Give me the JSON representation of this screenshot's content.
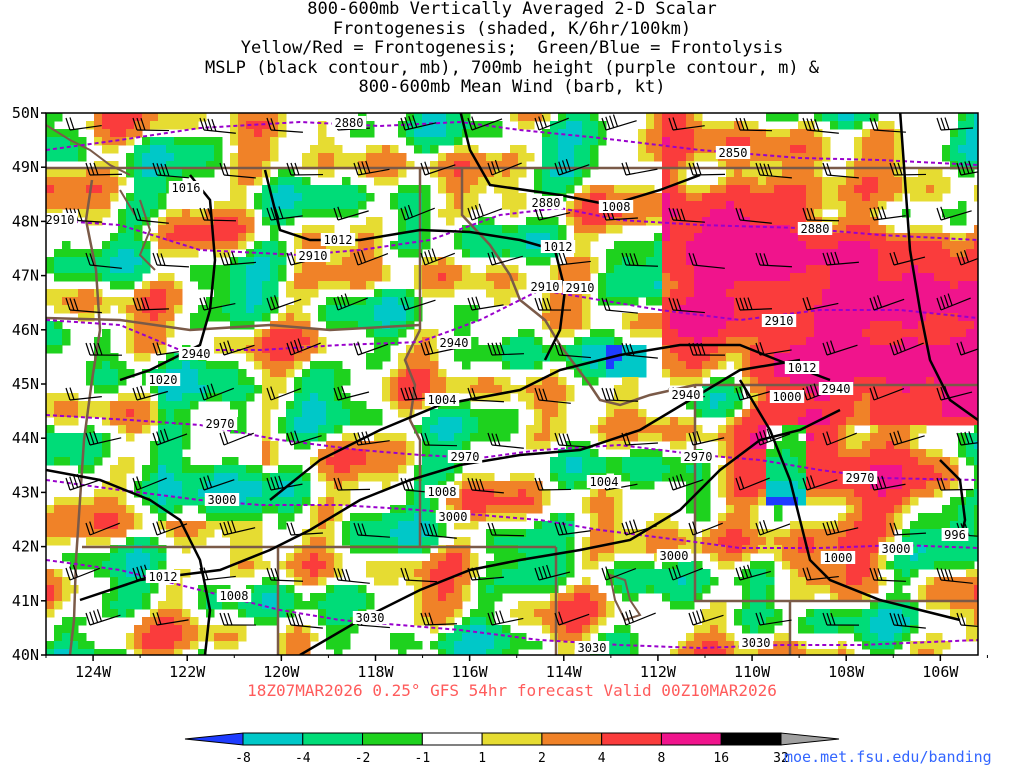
{
  "title_lines": [
    "800-600mb Vertically Averaged 2-D Scalar",
    "Frontogenesis (shaded, K/6hr/100km)",
    "Yellow/Red = Frontogenesis;  Green/Blue = Frontolysis",
    "MSLP (black contour, mb), 700mb height (purple contour, m) &",
    "800-600mb Mean Wind (barb, kt)"
  ],
  "caption": "18Z07MAR2026 0.25° GFS 54hr forecast Valid 00Z10MAR2026",
  "url": "moe.met.fsu.edu/banding",
  "map": {
    "lon_range": [
      -125.0,
      -105.2
    ],
    "lat_range": [
      40,
      50
    ],
    "lon_ticks": [
      "124W",
      "122W",
      "120W",
      "118W",
      "116W",
      "114W",
      "112W",
      "110W",
      "108W",
      "106W"
    ],
    "lat_ticks": [
      "50N",
      "49N",
      "48N",
      "47N",
      "46N",
      "45N",
      "44N",
      "43N",
      "42N",
      "41N",
      "40N"
    ],
    "colors": {
      "mslp": "#000000",
      "height": "#9900cc",
      "border": "#7a5a48",
      "barb": "#000000"
    },
    "mslp_labels": [
      "1016",
      "1012",
      "1012",
      "1008",
      "1020",
      "1012",
      "1008",
      "1004",
      "1004",
      "1000",
      "1000",
      "996",
      "1008",
      "1012"
    ],
    "height_labels": [
      "2880",
      "2850",
      "2880",
      "2880",
      "2910",
      "2910",
      "2910",
      "2910",
      "2940",
      "2940",
      "2940",
      "2970",
      "2970",
      "2970",
      "2970",
      "2940",
      "3000",
      "3000",
      "3000",
      "3000",
      "3030",
      "3030",
      "3030",
      "2910"
    ]
  },
  "colorbar": {
    "labels": [
      "-8",
      "-4",
      "-2",
      "-1",
      "1",
      "2",
      "4",
      "8",
      "16",
      "32"
    ],
    "colors": [
      "#1e3cff",
      "#00c8c8",
      "#00dc78",
      "#1ed21e",
      "#ffffff",
      "#e6dc32",
      "#f08228",
      "#fa3c3c",
      "#f0148c",
      "#000000",
      "#a0a0a0"
    ]
  }
}
